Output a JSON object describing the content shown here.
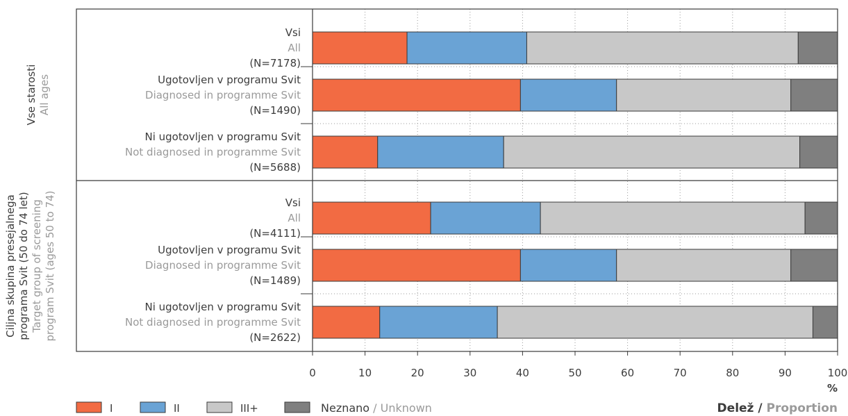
{
  "chart_data": {
    "type": "bar",
    "orientation": "horizontal",
    "stacked": true,
    "percent": true,
    "xlim": [
      0,
      100
    ],
    "x_ticks": [
      "0",
      "10",
      "20",
      "30",
      "40",
      "50",
      "60",
      "70",
      "80",
      "90",
      "100"
    ],
    "x_unit": "%",
    "xlabel": {
      "main": "Delež",
      "separator": " / ",
      "sub": "Proportion"
    },
    "grid": "vertical dotted",
    "legend_position": "bottom-left",
    "series": [
      {
        "name": "I",
        "color": "#f26b43"
      },
      {
        "name": "II",
        "color": "#6aa3d5"
      },
      {
        "name": "III+",
        "color": "#c8c8c8"
      },
      {
        "name_main": "Neznano",
        "separator": " / ",
        "name_sub": "Unknown",
        "color": "#7f7f7f"
      }
    ],
    "groups": [
      {
        "label_main": "Vse starosti",
        "label_sub": "All ages",
        "bars": [
          {
            "label_main": "Vsi",
            "label_sub": "All",
            "n": "(N=7178)",
            "values": [
              18.0,
              22.8,
              51.7,
              7.5
            ]
          },
          {
            "label_main": "Ugotovljen v programu Svit",
            "label_sub": "Diagnosed in programme Svit",
            "n": "(N=1490)",
            "values": [
              39.6,
              18.3,
              33.2,
              8.9
            ]
          },
          {
            "label_main": "Ni ugotovljen v programu Svit",
            "label_sub": "Not diagnosed in programme Svit",
            "n": "(N=5688)",
            "values": [
              12.4,
              24.0,
              56.4,
              7.2
            ]
          }
        ]
      },
      {
        "label_main": [
          "Ciljna skupina presejalnega",
          "programa Svit (50 do 74 let)"
        ],
        "label_sub": [
          "Target group of screening",
          "program Svit (ages 50 to 74)"
        ],
        "bars": [
          {
            "label_main": "Vsi",
            "label_sub": "All",
            "n": "(N=4111)",
            "values": [
              22.5,
              20.9,
              50.4,
              6.2
            ]
          },
          {
            "label_main": "Ugotovljen v programu Svit",
            "label_sub": "Diagnosed in programme Svit",
            "n": "(N=1489)",
            "values": [
              39.6,
              18.3,
              33.2,
              8.9
            ]
          },
          {
            "label_main": "Ni ugotovljen v programu Svit",
            "label_sub": "Not diagnosed in programme Svit",
            "n": "(N=2622)",
            "values": [
              12.8,
              22.4,
              60.1,
              4.7
            ]
          }
        ]
      }
    ]
  }
}
